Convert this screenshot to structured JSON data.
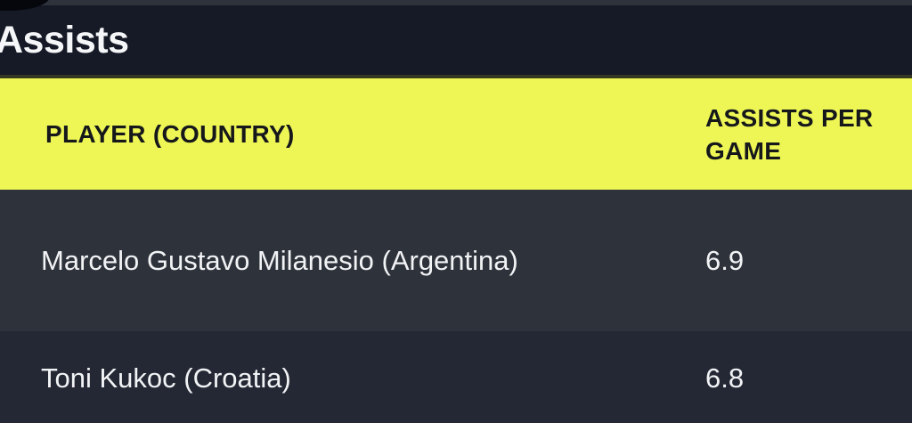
{
  "header": {
    "title": "Assists"
  },
  "table": {
    "columns": {
      "player": "PLAYER (COUNTRY)",
      "value": "ASSISTS PER GAME"
    },
    "rows": [
      {
        "player": "Marcelo Gustavo Milanesio (Argentina)",
        "value": "6.9"
      },
      {
        "player": "Toni Kukoc (Croatia)",
        "value": "6.8"
      }
    ]
  },
  "colors": {
    "accent_yellow": "#eef655",
    "header_background": "#151a26",
    "row_odd": "#2e323b",
    "row_even": "#232834",
    "page_background": "#05070d",
    "text_light": "#f2f3f5",
    "text_dark": "#15171b"
  }
}
